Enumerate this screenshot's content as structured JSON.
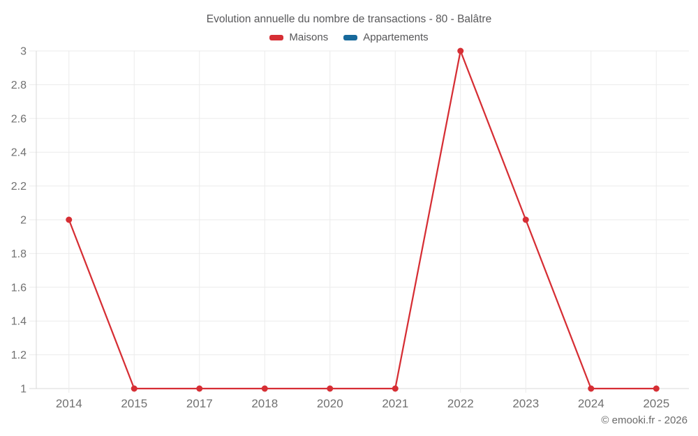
{
  "page": {
    "footer": "© emooki.fr - 2026"
  },
  "chart_data": {
    "type": "line",
    "title": "Evolution annuelle du nombre de transactions - 80 - Balâtre",
    "categories": [
      "2014",
      "2015",
      "2017",
      "2018",
      "2020",
      "2021",
      "2022",
      "2023",
      "2024",
      "2025"
    ],
    "series": [
      {
        "name": "Maisons",
        "color": "#d62e34",
        "values": [
          2,
          1,
          1,
          1,
          1,
          1,
          3,
          2,
          1,
          1
        ]
      },
      {
        "name": "Appartements",
        "color": "#17699b",
        "values": []
      }
    ],
    "xlabel": "",
    "ylabel": "",
    "ylim": [
      1,
      3
    ],
    "ytick_step": 0.2,
    "ytick_labels": [
      "1",
      "1.2",
      "1.4",
      "1.6",
      "1.8",
      "2",
      "2.2",
      "2.4",
      "2.6",
      "2.8",
      "3"
    ],
    "grid": true,
    "legend_position": "top"
  }
}
